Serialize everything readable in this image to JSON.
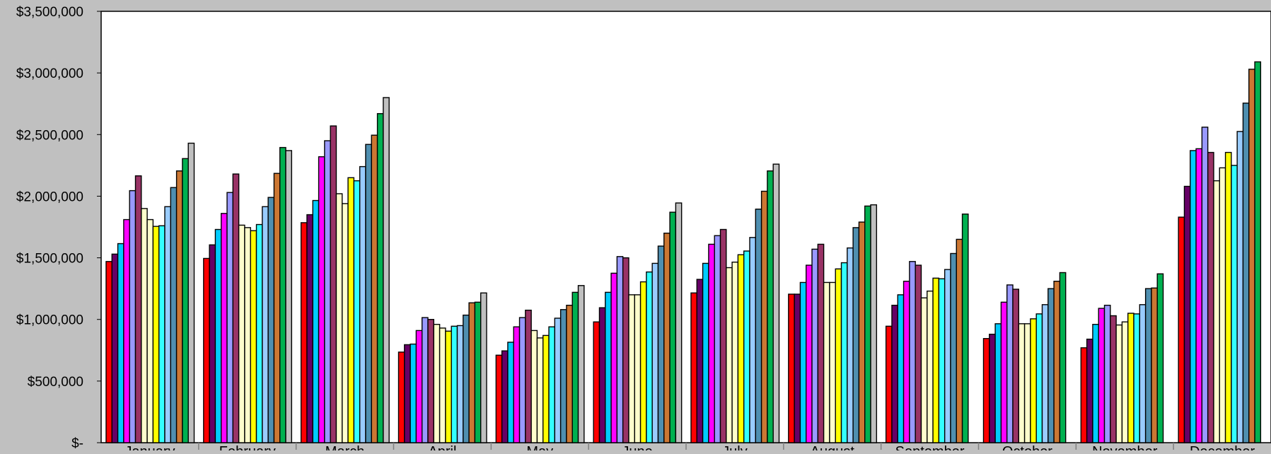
{
  "chart_data": {
    "type": "bar",
    "title": "",
    "xlabel": "",
    "ylabel": "",
    "ylim": [
      0,
      3500000
    ],
    "yticks": [
      0,
      500000,
      1000000,
      1500000,
      2000000,
      2500000,
      3000000,
      3500000
    ],
    "ytick_labels": [
      "$-",
      "$500,000",
      "$1,000,000",
      "$1,500,000",
      "$2,000,000",
      "$2,500,000",
      "$3,000,000",
      "$3,500,000"
    ],
    "categories": [
      "January",
      "February",
      "March",
      "April",
      "May",
      "June",
      "July",
      "August",
      "September",
      "October",
      "November",
      "December"
    ],
    "grid": false,
    "legend": "none",
    "series": [
      {
        "color": "#ff0000",
        "values": [
          1470000,
          1495000,
          1785000,
          735000,
          710000,
          980000,
          1215000,
          1205000,
          945000,
          845000,
          770000,
          1830000
        ]
      },
      {
        "color": "#660066",
        "values": [
          1530000,
          1605000,
          1850000,
          795000,
          745000,
          1095000,
          1325000,
          1205000,
          1115000,
          880000,
          840000,
          2080000
        ]
      },
      {
        "color": "#00ccff",
        "values": [
          1615000,
          1730000,
          1965000,
          800000,
          815000,
          1220000,
          1455000,
          1300000,
          1200000,
          965000,
          960000,
          2370000
        ]
      },
      {
        "color": "#ff00ff",
        "values": [
          1810000,
          1860000,
          2320000,
          910000,
          940000,
          1375000,
          1610000,
          1440000,
          1310000,
          1140000,
          1090000,
          2385000
        ]
      },
      {
        "color": "#9999ff",
        "values": [
          2045000,
          2030000,
          2450000,
          1015000,
          1015000,
          1510000,
          1680000,
          1570000,
          1470000,
          1280000,
          1115000,
          2560000
        ]
      },
      {
        "color": "#993366",
        "values": [
          2165000,
          2180000,
          2570000,
          1000000,
          1075000,
          1500000,
          1730000,
          1610000,
          1440000,
          1245000,
          1030000,
          2355000
        ]
      },
      {
        "color": "#ffffcc",
        "values": [
          1900000,
          1765000,
          2020000,
          960000,
          910000,
          1200000,
          1420000,
          1300000,
          1175000,
          965000,
          955000,
          2125000
        ]
      },
      {
        "color": "#ffffcc",
        "values": [
          1810000,
          1745000,
          1940000,
          930000,
          850000,
          1200000,
          1465000,
          1300000,
          1230000,
          965000,
          980000,
          2230000
        ]
      },
      {
        "color": "#ffff00",
        "values": [
          1755000,
          1720000,
          2150000,
          905000,
          870000,
          1305000,
          1525000,
          1410000,
          1335000,
          1005000,
          1050000,
          2355000
        ]
      },
      {
        "color": "#33ffff",
        "values": [
          1760000,
          1770000,
          2125000,
          945000,
          940000,
          1385000,
          1555000,
          1460000,
          1330000,
          1045000,
          1045000,
          2250000
        ]
      },
      {
        "color": "#99ccff",
        "values": [
          1915000,
          1915000,
          2240000,
          950000,
          1010000,
          1455000,
          1665000,
          1580000,
          1405000,
          1120000,
          1120000,
          2525000
        ]
      },
      {
        "color": "#4f8fb0",
        "values": [
          2070000,
          1990000,
          2420000,
          1035000,
          1080000,
          1595000,
          1895000,
          1745000,
          1535000,
          1250000,
          1250000,
          2755000
        ]
      },
      {
        "color": "#cc7733",
        "values": [
          2205000,
          2185000,
          2495000,
          1135000,
          1115000,
          1700000,
          2040000,
          1790000,
          1650000,
          1310000,
          1255000,
          3030000
        ]
      },
      {
        "color": "#00b050",
        "values": [
          2305000,
          2395000,
          2670000,
          1140000,
          1220000,
          1870000,
          2205000,
          1920000,
          1855000,
          1380000,
          1370000,
          3090000
        ]
      },
      {
        "color": "#c0c0c0",
        "values": [
          2430000,
          2370000,
          2800000,
          1215000,
          1275000,
          1945000,
          2260000,
          1930000,
          null,
          null,
          null,
          null
        ]
      }
    ]
  }
}
